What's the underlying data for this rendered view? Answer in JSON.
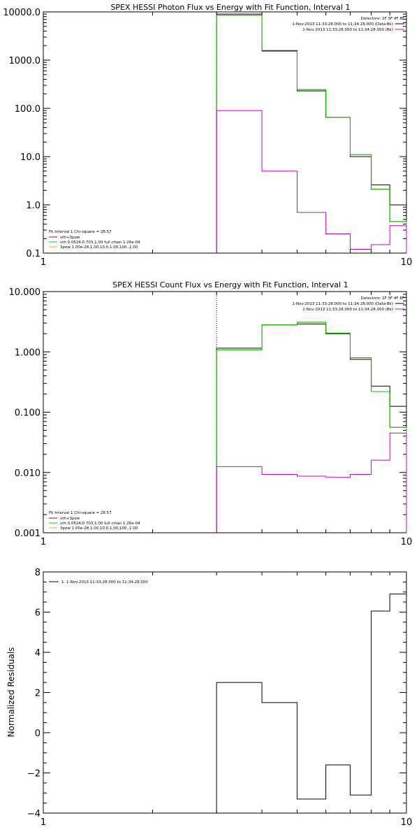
{
  "chart_data": [
    {
      "type": "line",
      "title": "SPEX HESSI Photon Flux vs Energy with Fit Function, Interval 1",
      "xscale": "log",
      "yscale": "log",
      "xlim": [
        1,
        10
      ],
      "ylim": [
        0.1,
        10000
      ],
      "x_ticks": [
        "1",
        "10"
      ],
      "y_ticks": [
        "0.1",
        "1.0",
        "10.0",
        "100.0",
        "1000.0",
        "10000.0"
      ],
      "y_tick_values": [
        0.1,
        1,
        10,
        100,
        1000,
        10000
      ],
      "vline_x": 3.0,
      "bin_edges": [
        3.0,
        4.0,
        5.0,
        6.0,
        7.0,
        8.0,
        9.0,
        10.0
      ],
      "series": [
        {
          "name": "1-Nov-2013 11:33:28.000 to 11:34:28.000 (Data-Bk)",
          "color": "#000000",
          "values": [
            9000,
            1580,
            230,
            65,
            10,
            2.6,
            1.0
          ]
        },
        {
          "name": "vth+3pow",
          "color": "#cc0000",
          "values": [
            8500,
            1520,
            245,
            65,
            11,
            2.1,
            0.45
          ]
        },
        {
          "name": "vth 0.0524,0.703,1.00 full chian 1.26e-04",
          "color": "#00cc00",
          "values": [
            8500,
            1520,
            245,
            65,
            11,
            2.1,
            0.45
          ]
        },
        {
          "name": "1-Nov-2013 11:33:28.000 to 11:34:28.000 (Bk)",
          "color": "#cc00cc",
          "values": [
            90,
            5.0,
            0.7,
            0.25,
            0.12,
            0.15,
            0.37
          ]
        },
        {
          "name": "3pow 1.00e-28,1.00,10.0,1.00,100.,1.00",
          "color": "#ffaa00",
          "values": []
        }
      ],
      "legend_top_right": {
        "detectors": "Detectors: 1F 3F 4F 8F",
        "entries": [
          "1-Nov-2013 11:33:28.000 to 11:34:28.000 (Data-Bk)",
          "1-Nov-2013 11:33:28.000 to 11:34:28.000 (Bk)"
        ]
      },
      "legend_bottom_left": {
        "header": "Fit Interval 1   Chi-square = 28.57",
        "entries": [
          "vth+3pow",
          "vth 0.0524,0.703,1.00  full chian 1.26e-04",
          "3pow 1.00e-28,1.00,10.0,1.00,100.,1.00"
        ]
      }
    },
    {
      "type": "line",
      "title": "SPEX HESSI Count Flux vs Energy with Fit Function, Interval 1",
      "xscale": "log",
      "yscale": "log",
      "xlim": [
        1,
        10
      ],
      "ylim": [
        0.001,
        10
      ],
      "x_ticks": [
        "1",
        "10"
      ],
      "y_ticks": [
        "0.001",
        "0.010",
        "0.100",
        "1.000",
        "10.000"
      ],
      "y_tick_values": [
        0.001,
        0.01,
        0.1,
        1,
        10
      ],
      "vline_x": 3.0,
      "bin_edges": [
        3.0,
        4.0,
        5.0,
        6.0,
        7.0,
        8.0,
        9.0,
        10.0
      ],
      "series": [
        {
          "name": "1-Nov-2013 11:33:28.000 to 11:34:28.000 (Data-Bk)",
          "color": "#000000",
          "values": [
            1.15,
            2.8,
            2.9,
            2.0,
            0.75,
            0.27,
            0.125
          ]
        },
        {
          "name": "vth+3pow",
          "color": "#cc0000",
          "values": [
            1.08,
            2.8,
            3.1,
            2.05,
            0.8,
            0.22,
            0.056
          ]
        },
        {
          "name": "vth 0.0524,0.703,1.00 full chian 1.26e-04",
          "color": "#00cc00",
          "values": [
            1.08,
            2.8,
            3.1,
            2.05,
            0.8,
            0.22,
            0.056
          ]
        },
        {
          "name": "1-Nov-2013 11:33:28.000 to 11:34:28.000 (Bk)",
          "color": "#cc00cc",
          "values": [
            0.0125,
            0.0093,
            0.0087,
            0.0083,
            0.0093,
            0.016,
            0.045
          ]
        },
        {
          "name": "3pow 1.00e-28,1.00,10.0,1.00,100.,1.00",
          "color": "#ffaa00",
          "values": []
        }
      ],
      "legend_top_right": {
        "detectors": "Detectors: 1F 3F 4F 8F",
        "entries": [
          "1-Nov-2013 11:33:28.000 to 11:34:28.000 (Data-Bk)",
          "1-Nov-2013 11:33:28.000 to 11:34:28.000 (Bk)"
        ]
      },
      "legend_bottom_left": {
        "header": "Fit Interval 1   Chi-square = 28.57",
        "entries": [
          "vth+3pow",
          "vth 0.0524,0.703,1.00  full chian 1.26e-04",
          "3pow 1.00e-28,1.00,10.0,1.00,100.,1.00"
        ]
      }
    },
    {
      "type": "line",
      "title": "",
      "ylabel": "Normalized Residuals",
      "xscale": "log",
      "yscale": "linear",
      "xlim": [
        1,
        10
      ],
      "ylim": [
        -4,
        8
      ],
      "x_ticks": [
        "1",
        "10"
      ],
      "y_ticks": [
        "−4",
        "−2",
        "0",
        "2",
        "4",
        "6",
        "8"
      ],
      "y_tick_values": [
        -4,
        -2,
        0,
        2,
        4,
        6,
        8
      ],
      "bin_edges": [
        3.0,
        4.0,
        5.0,
        6.0,
        7.0,
        8.0,
        9.0,
        10.0
      ],
      "series": [
        {
          "name": "1. 1-Nov-2013 11:33:28.000 to 11:34:28.000",
          "color": "#000000",
          "values": [
            2.5,
            1.5,
            -3.3,
            -1.6,
            -3.1,
            6.05,
            6.9
          ]
        }
      ],
      "legend_top_left": {
        "entries": [
          "1. 1-Nov-2013 11:33:28.000 to 11:34:28.000"
        ]
      }
    }
  ]
}
